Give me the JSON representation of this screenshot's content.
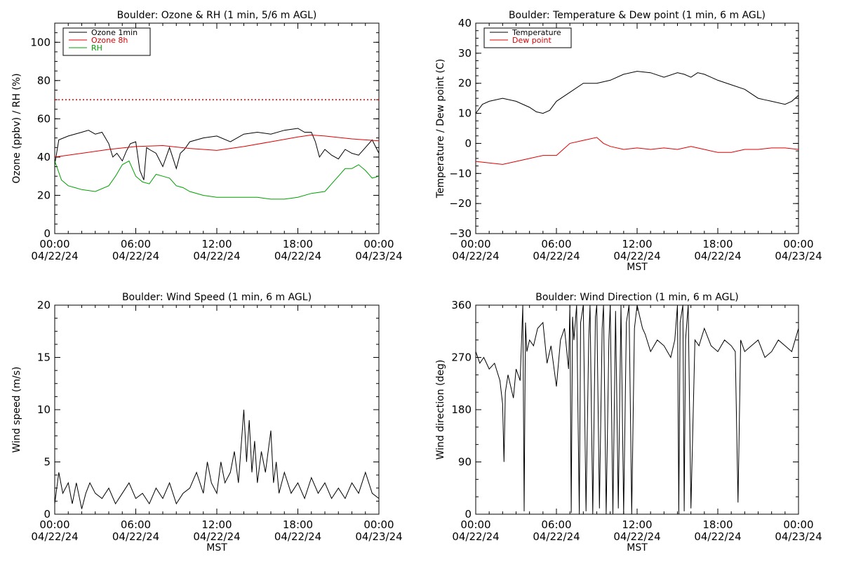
{
  "colors": {
    "ozone_1min": "#000000",
    "ozone_8h": "#dd0000",
    "rh": "#00a000",
    "temperature": "#000000",
    "dewpoint": "#dd0000",
    "wind": "#000000",
    "threshold": "#dd0000"
  },
  "chart_data": [
    {
      "id": "ozone",
      "type": "line",
      "title": "Boulder: Ozone & RH (1 min, 5/6 m AGL)",
      "xlabel": "",
      "ylabel": "Ozone (ppbv) / RH (%)",
      "ylim": [
        0,
        110
      ],
      "yticks": [
        "0",
        "20",
        "40",
        "60",
        "80",
        "100"
      ],
      "xticks": [
        {
          "time": "00:00",
          "date": "04/22/24"
        },
        {
          "time": "06:00",
          "date": "04/22/24"
        },
        {
          "time": "12:00",
          "date": "04/22/24"
        },
        {
          "time": "18:00",
          "date": "04/22/24"
        },
        {
          "time": "00:00",
          "date": "04/23/24"
        }
      ],
      "xlim_hours": [
        0,
        24
      ],
      "reference_line": {
        "y": 70,
        "style": "dotted"
      },
      "legend": {
        "placement": "top-left",
        "entries": [
          "Ozone 1min",
          "Ozone 8h",
          "RH"
        ]
      },
      "series": [
        {
          "name": "Ozone 1min",
          "x": [
            0,
            0.3,
            1,
            2,
            2.5,
            3,
            3.5,
            4,
            4.3,
            4.6,
            5,
            5.3,
            5.6,
            6,
            6.3,
            6.6,
            6.8,
            7,
            7.5,
            8,
            8.5,
            9,
            9.3,
            9.6,
            10,
            11,
            12,
            13,
            14,
            15,
            16,
            17,
            18,
            18.5,
            19,
            19.3,
            19.6,
            20,
            20.5,
            21,
            21.5,
            22,
            22.5,
            23,
            23.5,
            24
          ],
          "y": [
            36,
            49,
            51,
            53,
            54,
            52,
            53,
            47,
            40,
            42,
            38,
            43,
            47,
            48,
            33,
            28,
            45,
            44,
            42,
            35,
            45,
            34,
            42,
            44,
            48,
            50,
            51,
            48,
            52,
            53,
            52,
            54,
            55,
            53,
            53,
            48,
            40,
            44,
            41,
            39,
            44,
            42,
            41,
            45,
            49,
            42
          ]
        },
        {
          "name": "Ozone 8h",
          "x": [
            0,
            2,
            4,
            6,
            8,
            10,
            12,
            14,
            16,
            18,
            19,
            20,
            22,
            24
          ],
          "y": [
            40,
            42,
            44,
            45.5,
            46,
            44.5,
            43.5,
            45.5,
            48,
            50.5,
            51.5,
            51,
            49.5,
            48.5
          ]
        },
        {
          "name": "RH",
          "x": [
            0,
            0.5,
            1,
            1.5,
            2,
            3,
            4,
            4.5,
            5,
            5.5,
            6,
            6.5,
            7,
            7.5,
            8,
            8.5,
            9,
            9.5,
            10,
            11,
            12,
            13,
            14,
            15,
            16,
            17,
            18,
            19,
            20,
            20.5,
            21,
            21.5,
            22,
            22.5,
            23,
            23.5,
            24
          ],
          "y": [
            38,
            28,
            25,
            24,
            23,
            22,
            25,
            30,
            36,
            38,
            30,
            27,
            26,
            31,
            30,
            29,
            25,
            24,
            22,
            20,
            19,
            19,
            19,
            19,
            18,
            18,
            19,
            21,
            22,
            26,
            30,
            34,
            34,
            36,
            33,
            29,
            30
          ]
        }
      ]
    },
    {
      "id": "temp",
      "type": "line",
      "title": "Boulder: Temperature & Dew point (1 min, 6 m AGL)",
      "xlabel": "MST",
      "ylabel": "Temperature / Dew point (C)",
      "ylim": [
        -30,
        40
      ],
      "yticks": [
        "40",
        "30",
        "20",
        "10",
        "0",
        "−10",
        "−20",
        "−30"
      ],
      "xticks": [
        {
          "time": "00:00",
          "date": "04/22/24"
        },
        {
          "time": "06:00",
          "date": "04/22/24"
        },
        {
          "time": "12:00",
          "date": "04/22/24"
        },
        {
          "time": "18:00",
          "date": "04/22/24"
        },
        {
          "time": "00:00",
          "date": "04/23/24"
        }
      ],
      "xlim_hours": [
        0,
        24
      ],
      "legend": {
        "placement": "top-left",
        "entries": [
          "Temperature",
          "Dew point"
        ]
      },
      "series": [
        {
          "name": "Temperature",
          "x": [
            0,
            0.5,
            1,
            2,
            3,
            4,
            4.5,
            5,
            5.5,
            6,
            7,
            8,
            9,
            10,
            11,
            12,
            13,
            14,
            15,
            15.5,
            16,
            16.5,
            17,
            18,
            19,
            20,
            21,
            21.5,
            22,
            23,
            23.5,
            24
          ],
          "y": [
            10,
            13,
            14,
            15,
            14,
            12,
            10.5,
            10,
            11,
            14,
            17,
            20,
            20,
            21,
            23,
            24,
            23.5,
            22,
            23.5,
            23,
            22,
            23.5,
            23,
            21,
            19.5,
            18,
            15,
            14.5,
            14,
            13,
            14,
            16
          ]
        },
        {
          "name": "Dew point",
          "x": [
            0,
            1,
            2,
            3,
            4,
            5,
            6,
            6.5,
            7,
            8,
            9,
            9.5,
            10,
            11,
            12,
            13,
            14,
            15,
            16,
            17,
            18,
            19,
            20,
            21,
            22,
            23,
            24
          ],
          "y": [
            -6,
            -6.5,
            -7,
            -6,
            -5,
            -4,
            -4,
            -2,
            0,
            1,
            2,
            0,
            -1,
            -2,
            -1.5,
            -2,
            -1.5,
            -2,
            -1,
            -2,
            -3,
            -3,
            -2,
            -2,
            -1.5,
            -1.5,
            -2
          ]
        }
      ]
    },
    {
      "id": "wspd",
      "type": "line",
      "title": "Boulder: Wind Speed (1 min, 6 m AGL)",
      "xlabel": "MST",
      "ylabel": "Wind speed (m/s)",
      "ylim": [
        0,
        20
      ],
      "yticks": [
        "0",
        "5",
        "10",
        "15",
        "20"
      ],
      "xticks": [
        {
          "time": "00:00",
          "date": "04/22/24"
        },
        {
          "time": "06:00",
          "date": "04/22/24"
        },
        {
          "time": "12:00",
          "date": "04/22/24"
        },
        {
          "time": "18:00",
          "date": "04/22/24"
        },
        {
          "time": "00:00",
          "date": "04/23/24"
        }
      ],
      "xlim_hours": [
        0,
        24
      ],
      "series": [
        {
          "name": "",
          "x": [
            0,
            0.3,
            0.6,
            1,
            1.3,
            1.6,
            2,
            2.3,
            2.6,
            3,
            3.5,
            4,
            4.5,
            5,
            5.5,
            6,
            6.5,
            7,
            7.5,
            8,
            8.5,
            9,
            9.5,
            10,
            10.5,
            11,
            11.3,
            11.6,
            12,
            12.3,
            12.6,
            13,
            13.3,
            13.6,
            14,
            14.2,
            14.4,
            14.6,
            14.8,
            15,
            15.3,
            15.6,
            16,
            16.2,
            16.4,
            16.6,
            17,
            17.5,
            18,
            18.5,
            19,
            19.5,
            20,
            20.5,
            21,
            21.5,
            22,
            22.5,
            23,
            23.5,
            24
          ],
          "y": [
            1,
            4,
            2,
            3,
            1,
            3,
            0.5,
            2,
            3,
            2,
            1.5,
            2.5,
            1,
            2,
            3,
            1.5,
            2,
            1,
            2.5,
            1.5,
            3,
            1,
            2,
            2.5,
            4,
            2,
            5,
            3,
            2,
            5,
            3,
            4,
            6,
            3,
            10,
            5,
            9,
            4,
            7,
            3,
            6,
            4,
            8,
            3,
            5,
            2,
            4,
            2,
            3,
            1.5,
            3.5,
            2,
            3,
            1.5,
            2.5,
            1.5,
            3,
            2,
            4,
            2,
            1.5
          ]
        }
      ]
    },
    {
      "id": "wdir",
      "type": "line",
      "title": "Boulder: Wind Direction (1 min, 6 m AGL)",
      "xlabel": "MST",
      "ylabel": "Wind direction (deg)",
      "ylim": [
        0,
        360
      ],
      "yticks": [
        "0",
        "90",
        "180",
        "270",
        "360"
      ],
      "xticks": [
        {
          "time": "00:00",
          "date": "04/22/24"
        },
        {
          "time": "06:00",
          "date": "04/22/24"
        },
        {
          "time": "12:00",
          "date": "04/22/24"
        },
        {
          "time": "18:00",
          "date": "04/22/24"
        },
        {
          "time": "00:00",
          "date": "04/23/24"
        }
      ],
      "xlim_hours": [
        0,
        24
      ],
      "series": [
        {
          "name": "",
          "x": [
            0,
            0.3,
            0.6,
            1,
            1.4,
            1.8,
            2,
            2.1,
            2.2,
            2.4,
            2.8,
            3,
            3.3,
            3.5,
            3.6,
            3.7,
            3.8,
            4,
            4.3,
            4.6,
            5,
            5.3,
            5.6,
            6,
            6.3,
            6.6,
            6.9,
            7,
            7.1,
            7.2,
            7.3,
            7.5,
            7.7,
            7.8,
            8,
            8.2,
            8.4,
            8.5,
            8.7,
            8.9,
            9,
            9.2,
            9.4,
            9.5,
            9.7,
            9.9,
            10,
            10.2,
            10.4,
            10.6,
            10.8,
            11,
            11.2,
            11.4,
            11.6,
            11.8,
            12,
            12.2,
            12.4,
            12.6,
            13,
            13.5,
            14,
            14.5,
            14.8,
            15,
            15.1,
            15.2,
            15.4,
            15.5,
            15.6,
            15.8,
            16,
            16.3,
            16.6,
            17,
            17.5,
            18,
            18.5,
            19,
            19.3,
            19.5,
            19.7,
            20,
            20.5,
            21,
            21.5,
            22,
            22.5,
            23,
            23.5,
            24
          ],
          "y": [
            280,
            260,
            270,
            250,
            260,
            230,
            190,
            90,
            210,
            240,
            200,
            250,
            230,
            360,
            5,
            330,
            280,
            300,
            290,
            320,
            330,
            260,
            290,
            220,
            300,
            320,
            250,
            360,
            2,
            340,
            300,
            360,
            0,
            330,
            360,
            5,
            300,
            360,
            0,
            340,
            360,
            10,
            320,
            360,
            0,
            300,
            360,
            0,
            350,
            10,
            360,
            0,
            330,
            360,
            0,
            320,
            360,
            340,
            320,
            310,
            280,
            300,
            290,
            270,
            300,
            360,
            0,
            330,
            360,
            5,
            300,
            360,
            10,
            300,
            290,
            320,
            290,
            280,
            300,
            290,
            280,
            20,
            300,
            280,
            290,
            300,
            270,
            280,
            300,
            290,
            280,
            320
          ]
        }
      ]
    }
  ]
}
